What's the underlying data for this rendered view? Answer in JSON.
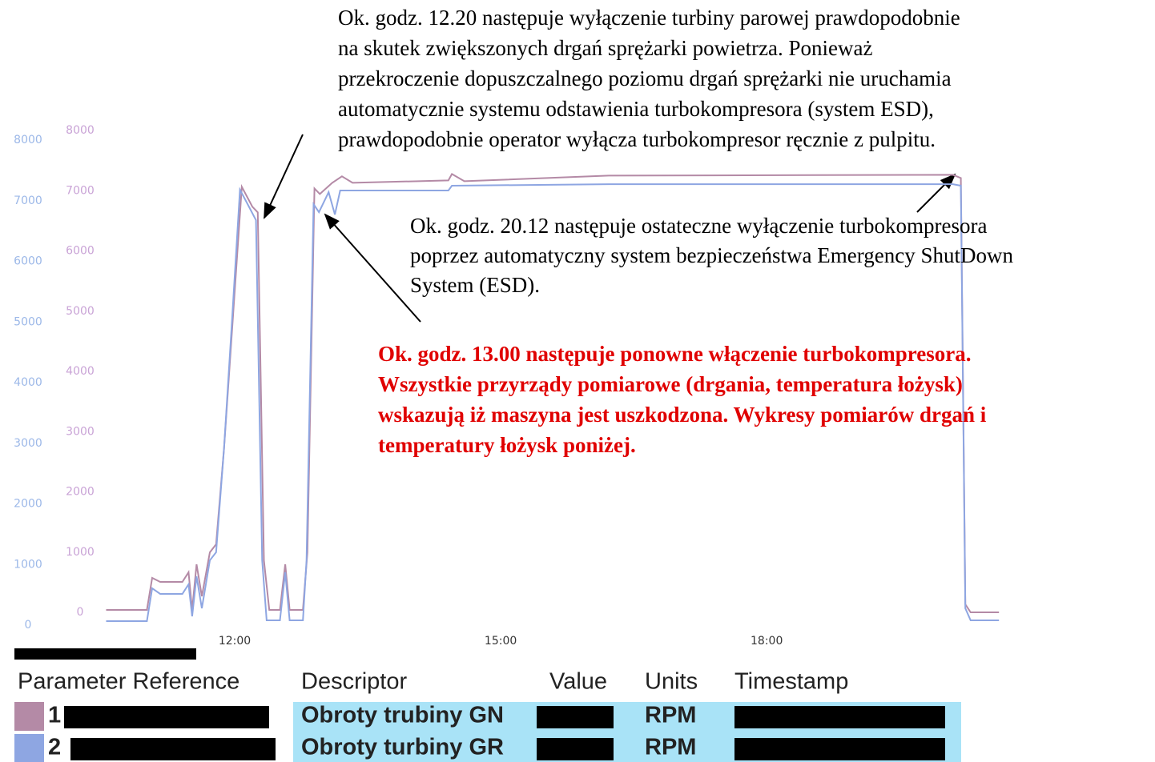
{
  "chart_data": {
    "type": "line",
    "xlim": [
      10.55,
      20.62
    ],
    "xticks": [
      {
        "value": 12,
        "label": "12:00"
      },
      {
        "value": 15,
        "label": "15:00"
      },
      {
        "value": 18,
        "label": "18:00"
      }
    ],
    "ylim": [
      0,
      8000
    ],
    "yticks": [
      0,
      1000,
      2000,
      3000,
      4000,
      5000,
      6000,
      7000,
      8000
    ],
    "y2lim": [
      0,
      8000
    ],
    "y2ticks": [
      0,
      1000,
      2000,
      3000,
      4000,
      5000,
      6000,
      7000,
      8000
    ],
    "y_tick_color": "#9cb8e8",
    "y2_tick_color": "#c9a3d6",
    "series": [
      {
        "color": "#b48aa6",
        "axis": "y2",
        "x": [
          10.55,
          11.01,
          11.07,
          11.16,
          11.41,
          11.48,
          11.52,
          11.57,
          11.63,
          11.72,
          11.79,
          11.88,
          11.99,
          12.08,
          12.2,
          12.26,
          12.33,
          12.39,
          12.51,
          12.57,
          12.62,
          12.77,
          12.82,
          12.9,
          12.96,
          13.1,
          13.21,
          13.33,
          14.41,
          14.45,
          14.59,
          16.22,
          20.1,
          20.19,
          20.24,
          20.3,
          20.62
        ],
        "values": [
          40,
          40,
          571,
          505,
          505,
          664,
          40,
          797,
          266,
          996,
          1129,
          2722,
          5113,
          7065,
          6733,
          6640,
          863,
          40,
          40,
          797,
          40,
          40,
          996,
          7038,
          6945,
          7131,
          7238,
          7131,
          7171,
          7277,
          7158,
          7251,
          7264,
          7211,
          133,
          0,
          0
        ]
      },
      {
        "color": "#8ea6e2",
        "axis": "y",
        "x": [
          10.55,
          11.01,
          11.07,
          11.16,
          11.41,
          11.48,
          11.52,
          11.57,
          11.63,
          11.72,
          11.79,
          11.88,
          11.97,
          12.06,
          12.17,
          12.24,
          12.31,
          12.36,
          12.51,
          12.57,
          12.62,
          12.77,
          12.81,
          12.89,
          12.95,
          13.06,
          13.13,
          13.19,
          13.33,
          14.41,
          14.45,
          16.22,
          20.1,
          20.19,
          20.24,
          20.3,
          20.62
        ],
        "values": [
          66,
          66,
          607,
          515,
          515,
          673,
          145,
          805,
          277,
          1069,
          1201,
          2917,
          5029,
          7181,
          6877,
          6679,
          1069,
          79,
          79,
          871,
          79,
          79,
          1069,
          6943,
          6811,
          7141,
          6772,
          7168,
          7168,
          7168,
          7247,
          7273,
          7273,
          7247,
          277,
          79,
          79
        ]
      }
    ],
    "annotations": [
      {
        "color": "#000000",
        "bold": false,
        "lines": [
          "Ok. godz. 12.20 następuje wyłączenie turbiny parowej prawdopodobnie",
          "na skutek zwiększonych drgań sprężarki powietrza. Ponieważ",
          "przekroczenie dopuszczalnego poziomu drgań sprężarki nie uruchamia",
          "automatycznie systemu odstawienia turbokompresora (system ESD),",
          "prawdopodobnie operator wyłącza turbokompresor ręcznie z pulpitu."
        ]
      },
      {
        "color": "#000000",
        "bold": false,
        "lines": [
          "Ok. godz. 20.12 następuje ostateczne wyłączenie turbokompresora",
          "poprzez automatyczny system bezpieczeństwa Emergency ShutDown",
          "System (ESD)."
        ]
      },
      {
        "color": "#e00000",
        "bold": true,
        "lines": [
          "Ok. godz. 13.00 następuje ponowne włączenie turbokompresora.",
          "Wszystkie przyrządy pomiarowe (drgania, temperatura łożysk)",
          "wskazują iż maszyna jest uszkodzona. Wykresy pomiarów drgań i",
          "temperatury łożysk poniżej."
        ]
      }
    ],
    "table": {
      "columns": [
        "Parameter Reference",
        "Descriptor",
        "Value",
        "Units",
        "Timestamp"
      ],
      "rows": [
        [
          "1",
          "Obroty trubiny GN",
          "RPM"
        ],
        [
          "2",
          "Obroty turbiny GR",
          "RPM"
        ]
      ]
    }
  }
}
